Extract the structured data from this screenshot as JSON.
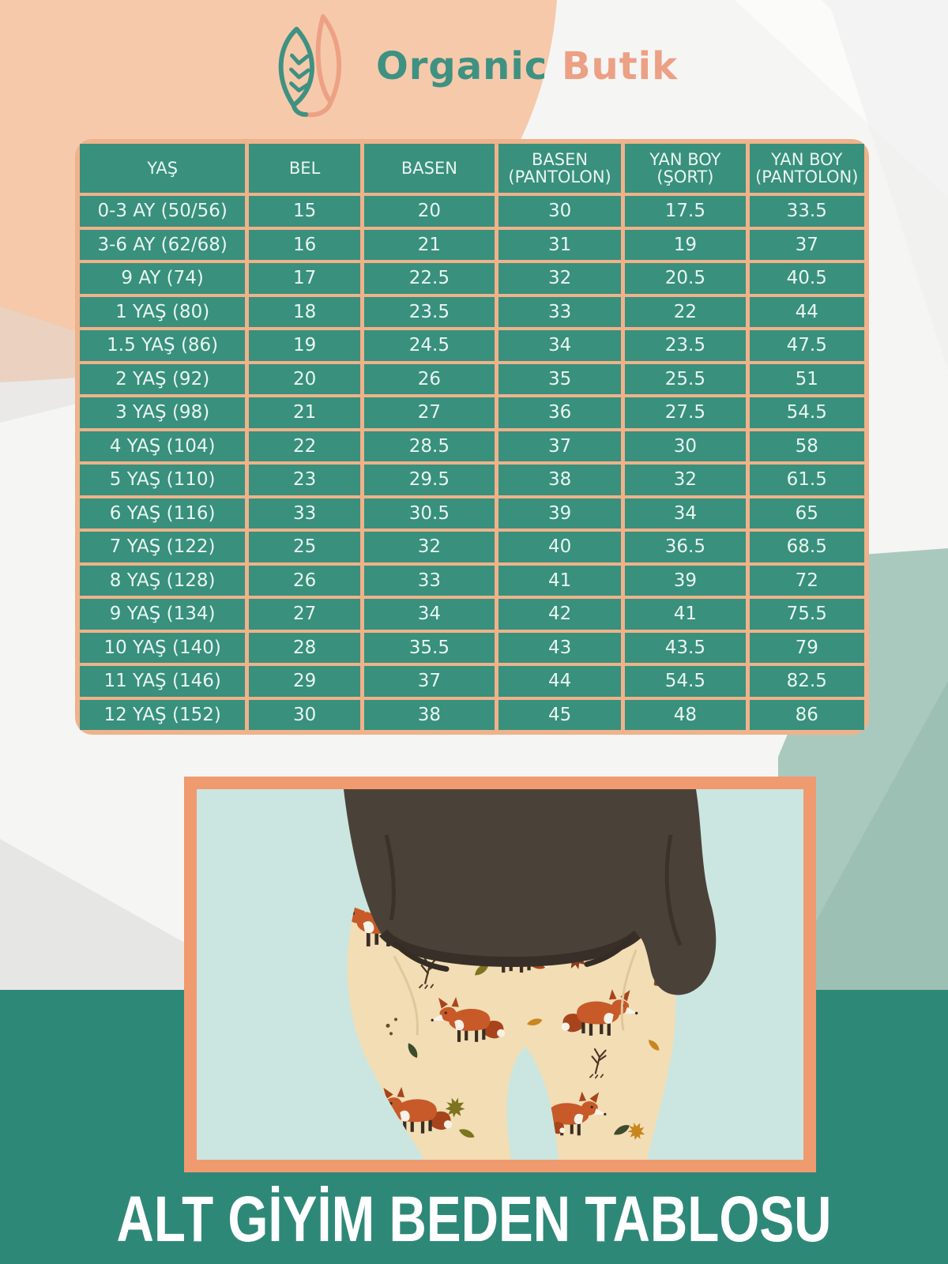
{
  "logo": {
    "primary": "Organic",
    "secondary": "Butik"
  },
  "size_table": {
    "columns": [
      "YAŞ",
      "BEL",
      "BASEN",
      "BASEN (PANTOLON)",
      "YAN BOY (ŞORT)",
      "YAN BOY (PANTOLON)"
    ],
    "rows": [
      [
        "0-3 AY (50/56)",
        "15",
        "20",
        "30",
        "17.5",
        "33.5"
      ],
      [
        "3-6 AY (62/68)",
        "16",
        "21",
        "31",
        "19",
        "37"
      ],
      [
        "9 AY (74)",
        "17",
        "22.5",
        "32",
        "20.5",
        "40.5"
      ],
      [
        "1 YAŞ (80)",
        "18",
        "23.5",
        "33",
        "22",
        "44"
      ],
      [
        "1.5 YAŞ (86)",
        "19",
        "24.5",
        "34",
        "23.5",
        "47.5"
      ],
      [
        "2 YAŞ (92)",
        "20",
        "26",
        "35",
        "25.5",
        "51"
      ],
      [
        "3 YAŞ (98)",
        "21",
        "27",
        "36",
        "27.5",
        "54.5"
      ],
      [
        "4 YAŞ (104)",
        "22",
        "28.5",
        "37",
        "30",
        "58"
      ],
      [
        "5 YAŞ (110)",
        "23",
        "29.5",
        "38",
        "32",
        "61.5"
      ],
      [
        "6 YAŞ (116)",
        "33",
        "30.5",
        "39",
        "34",
        "65"
      ],
      [
        "7 YAŞ (122)",
        "25",
        "32",
        "40",
        "36.5",
        "68.5"
      ],
      [
        "8 YAŞ (128)",
        "26",
        "33",
        "41",
        "39",
        "72"
      ],
      [
        "9 YAŞ (134)",
        "27",
        "34",
        "42",
        "41",
        "75.5"
      ],
      [
        "10 YAŞ (140)",
        "28",
        "35.5",
        "43",
        "43.5",
        "79"
      ],
      [
        "11 YAŞ (146)",
        "29",
        "37",
        "44",
        "54.5",
        "82.5"
      ],
      [
        "12 YAŞ (152)",
        "30",
        "38",
        "45",
        "48",
        "86"
      ]
    ]
  },
  "footer": {
    "title": "ALT GİYİM BEDEN TABLOSU"
  },
  "colors": {
    "cell_teal": "#38907d",
    "grid_peach": "#efb28a",
    "footer_teal": "#2e8878",
    "frame_peach": "#f09a70",
    "blob_peach": "#f6c9ab",
    "sage": "#9cc0b4",
    "photo_mint": "#cbe6e0",
    "logo_teal": "#3f9181",
    "logo_peach": "#eca084"
  }
}
